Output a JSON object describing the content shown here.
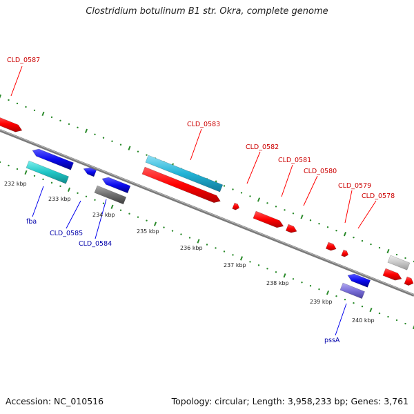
{
  "title": "Clostridium botulinum B1 str. Okra, complete genome",
  "accession": "Accession: NC_010516",
  "topology": "Topology: circular; Length: 3,958,233 bp; Genes: 3,761",
  "colors": {
    "forward": "#ff0000",
    "reverse": "#0000ee",
    "cyan": "#22b3d6",
    "teal": "#20c6c6",
    "gray": "#777777",
    "lightgray": "#c8c8c8",
    "purple": "#7a6fd8",
    "backbone": "#777777",
    "ticks": "#2a8a2a",
    "label_red": "#cc0000",
    "label_blue": "#0000aa"
  },
  "scale_labels": [
    "232 kbp",
    "233 kbp",
    "234 kbp",
    "235 kbp",
    "236 kbp",
    "237 kbp",
    "238 kbp",
    "239 kbp",
    "240 kbp"
  ],
  "gene_labels": [
    {
      "text": "CLD_0587",
      "strand": "forward"
    },
    {
      "text": "CLD_0583",
      "strand": "forward"
    },
    {
      "text": "CLD_0582",
      "strand": "forward"
    },
    {
      "text": "CLD_0581",
      "strand": "forward"
    },
    {
      "text": "CLD_0580",
      "strand": "forward"
    },
    {
      "text": "CLD_0579",
      "strand": "forward"
    },
    {
      "text": "CLD_0578",
      "strand": "forward"
    },
    {
      "text": "fba",
      "strand": "reverse"
    },
    {
      "text": "CLD_0585",
      "strand": "reverse"
    },
    {
      "text": "CLD_0584",
      "strand": "reverse"
    },
    {
      "text": "pssA",
      "strand": "reverse"
    }
  ]
}
